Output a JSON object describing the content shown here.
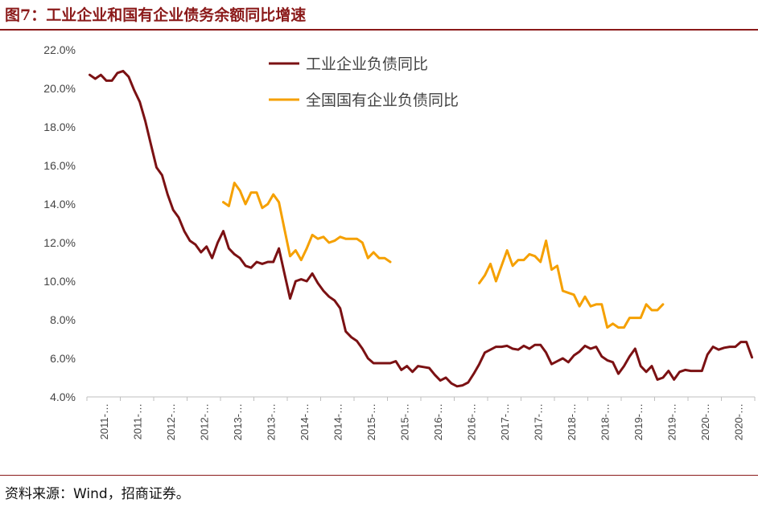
{
  "header": {
    "title": "图7：工业企业和国有企业债务余额同比增速"
  },
  "footer": {
    "source": "资料来源：Wind，招商证券。"
  },
  "chart_data": {
    "type": "line",
    "title": "图7：工业企业和国有企业债务余额同比增速",
    "xlabel": "",
    "ylabel": "",
    "ylim": [
      4.0,
      22.0
    ],
    "y_ticks": [
      "4.0%",
      "6.0%",
      "8.0%",
      "10.0%",
      "12.0%",
      "14.0%",
      "16.0%",
      "18.0%",
      "20.0%",
      "22.0%"
    ],
    "x_ticks": [
      "2011-…",
      "2011-…",
      "2012-…",
      "2012-…",
      "2013-…",
      "2013-…",
      "2014-…",
      "2014-…",
      "2015-…",
      "2015-…",
      "2016-…",
      "2016-…",
      "2017-…",
      "2017-…",
      "2018-…",
      "2018-…",
      "2019-…",
      "2019-…",
      "2020-…",
      "2020-…"
    ],
    "grid": false,
    "legend_position": "top-center",
    "colors": {
      "industrial": "#7B1113",
      "soe": "#F5A000"
    },
    "series": [
      {
        "name": "工业企业负债同比",
        "color": "#7B1113",
        "values": [
          20.7,
          20.5,
          20.7,
          20.4,
          20.4,
          20.8,
          20.9,
          20.6,
          19.9,
          19.3,
          18.3,
          17.1,
          15.9,
          15.5,
          14.5,
          13.7,
          13.3,
          12.6,
          12.1,
          11.9,
          11.5,
          11.8,
          11.2,
          12.0,
          12.6,
          11.7,
          11.4,
          11.2,
          10.8,
          10.7,
          11.0,
          10.9,
          11.0,
          11.0,
          11.7,
          10.4,
          9.1,
          10.0,
          10.1,
          10.0,
          10.4,
          9.9,
          9.5,
          9.2,
          9.0,
          8.6,
          7.4,
          7.1,
          6.9,
          6.5,
          6.0,
          5.75,
          5.75,
          5.75,
          5.75,
          5.85,
          5.4,
          5.6,
          5.3,
          5.6,
          5.55,
          5.5,
          5.15,
          4.85,
          5.0,
          4.7,
          4.55,
          4.6,
          4.75,
          5.2,
          5.7,
          6.3,
          6.45,
          6.6,
          6.6,
          6.65,
          6.5,
          6.45,
          6.65,
          6.5,
          6.7,
          6.7,
          6.3,
          5.7,
          5.85,
          6.0,
          5.8,
          6.15,
          6.35,
          6.65,
          6.5,
          6.6,
          6.1,
          5.9,
          5.8,
          5.2,
          5.6,
          6.1,
          6.5,
          5.6,
          5.3,
          5.6,
          4.9,
          5.0,
          5.35,
          4.9,
          5.3,
          5.4,
          5.35,
          5.35,
          5.35,
          6.2,
          6.6,
          6.45,
          6.55,
          6.6,
          6.6,
          6.85,
          6.85,
          6.05
        ]
      },
      {
        "name": "全国国有企业负债同比",
        "color": "#F5A000",
        "start_index": 24,
        "values": [
          14.1,
          13.9,
          15.1,
          14.7,
          14.0,
          14.6,
          14.6,
          13.8,
          14.0,
          14.5,
          14.1,
          12.7,
          11.3,
          11.6,
          11.1,
          11.7,
          12.4,
          12.2,
          12.3,
          12.0,
          12.1,
          12.3,
          12.2,
          12.2,
          12.2,
          12.0,
          11.2,
          11.5,
          11.2,
          11.2,
          11.0,
          null,
          null,
          null,
          null,
          null,
          null,
          null,
          null,
          null,
          null,
          null,
          null,
          null,
          null,
          null,
          9.9,
          10.3,
          10.9,
          10.0,
          10.8,
          11.6,
          10.8,
          11.1,
          11.1,
          11.4,
          11.3,
          11.0,
          12.1,
          10.6,
          10.8,
          9.5,
          9.4,
          9.3,
          8.7,
          9.2,
          8.7,
          8.8,
          8.8,
          7.6,
          7.8,
          7.6,
          7.6,
          8.1,
          8.1,
          8.1,
          8.8,
          8.5,
          8.5,
          8.8
        ]
      }
    ]
  }
}
